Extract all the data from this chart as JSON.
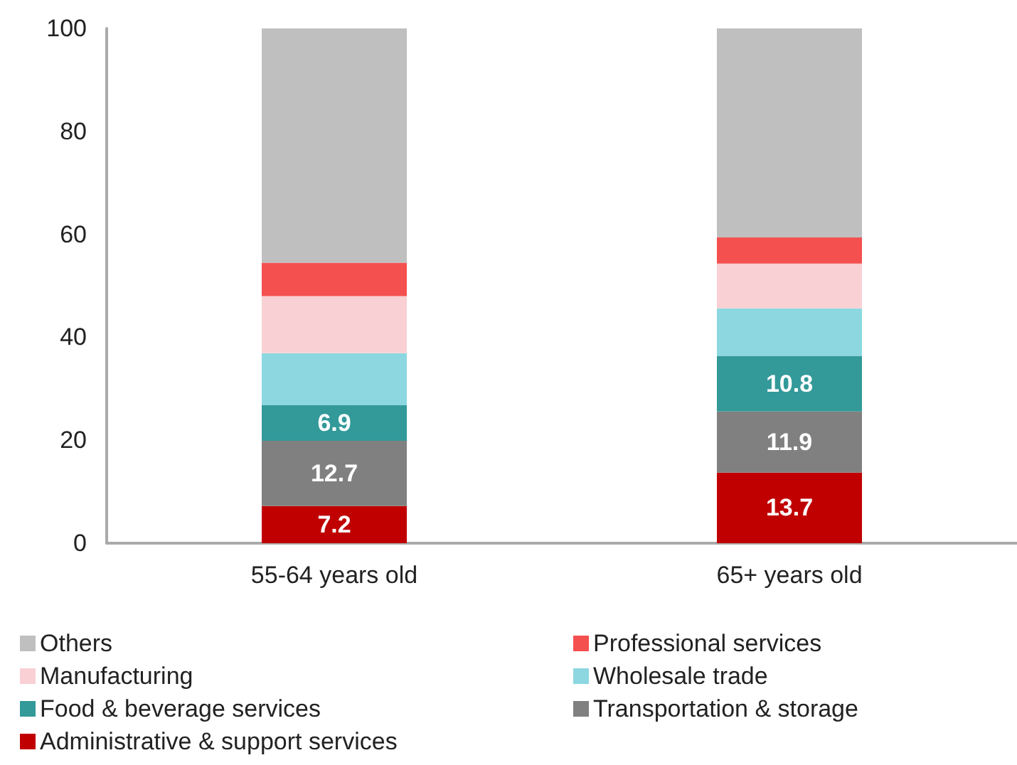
{
  "chart_data": {
    "type": "bar",
    "stacked": true,
    "categories": [
      "55-64 years old",
      "65+ years old"
    ],
    "series": [
      {
        "name": "Administrative & support services",
        "color": "#c00000",
        "values": [
          7.2,
          13.7
        ],
        "value_labels": [
          "7.2",
          "13.7"
        ]
      },
      {
        "name": "Transportation & storage",
        "color": "#808080",
        "values": [
          12.7,
          11.9
        ],
        "value_labels": [
          "12.7",
          "11.9"
        ]
      },
      {
        "name": "Food & beverage services",
        "color": "#339999",
        "values": [
          6.9,
          10.8
        ],
        "value_labels": [
          "6.9",
          "10.8"
        ]
      },
      {
        "name": "Wholesale trade",
        "color": "#8cd7e0",
        "values": [
          10.1,
          9.2
        ]
      },
      {
        "name": "Manufacturing",
        "color": "#f9d0d3",
        "values": [
          11.1,
          8.7
        ]
      },
      {
        "name": "Professional services",
        "color": "#f55050",
        "values": [
          6.5,
          5.1
        ]
      },
      {
        "name": "Others",
        "color": "#bfbfbf",
        "values": [
          45.5,
          40.6
        ]
      }
    ],
    "ylim": [
      0,
      100
    ],
    "yticks": [
      0,
      20,
      40,
      60,
      80,
      100
    ],
    "grid": false,
    "legend": "bottom"
  }
}
